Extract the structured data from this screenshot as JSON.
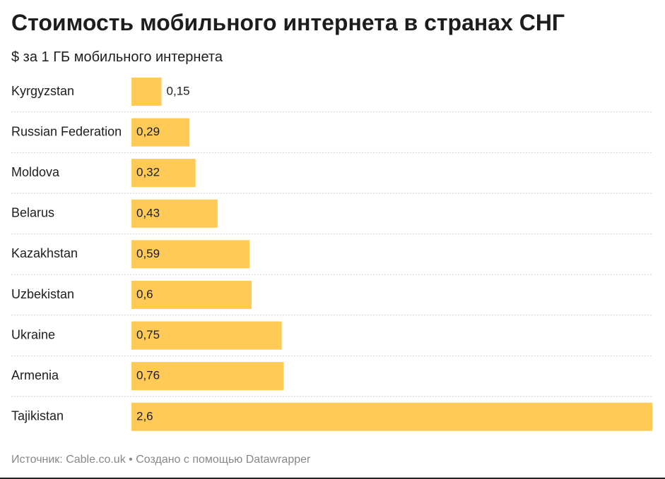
{
  "title": "Стоимость мобильного интернета в странах СНГ",
  "subtitle": "$ за 1 ГБ мобильного интернета",
  "footer": {
    "source_label": "Источник:",
    "source": "Cable.co.uk",
    "separator": "•",
    "credit": "Создано с помощью Datawrapper"
  },
  "colors": {
    "bar": "#ffcb56",
    "label": "#1d1d1d",
    "gridline": "#cfcfcf",
    "footer": "#888888"
  },
  "chart_data": {
    "type": "bar",
    "orientation": "horizontal",
    "categories": [
      "Kyrgyzstan",
      "Russian Federation",
      "Moldova",
      "Belarus",
      "Kazakhstan",
      "Uzbekistan",
      "Ukraine",
      "Armenia",
      "Tajikistan"
    ],
    "values": [
      0.15,
      0.29,
      0.32,
      0.43,
      0.59,
      0.6,
      0.75,
      0.76,
      2.6
    ],
    "value_labels": [
      "0,15",
      "0,29",
      "0,32",
      "0,43",
      "0,59",
      "0,6",
      "0,75",
      "0,76",
      "2,6"
    ],
    "xlim": [
      0,
      2.6
    ],
    "grid": false
  }
}
